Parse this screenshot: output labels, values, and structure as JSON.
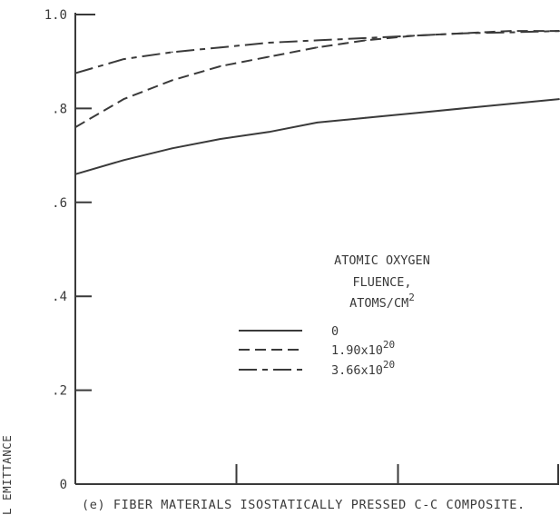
{
  "chart_data": {
    "type": "line",
    "ylabel": "L EMITTANCE",
    "ylim": [
      0,
      1.0
    ],
    "y_ticks": [
      {
        "value": 0.0,
        "label": "0"
      },
      {
        "value": 0.2,
        "label": ".2"
      },
      {
        "value": 0.4,
        "label": ".4"
      },
      {
        "value": 0.6,
        "label": ".6"
      },
      {
        "value": 0.8,
        "label": ".8"
      },
      {
        "value": 1.0,
        "label": "1.0"
      }
    ],
    "x_minor_ticks": [
      0.333,
      0.667,
      1.0
    ],
    "xlim": [
      0,
      1
    ],
    "caption": "(e) FIBER MATERIALS ISOSTATICALLY PRESSED C-C COMPOSITE.",
    "legend": {
      "title_lines": [
        "ATOMIC OXYGEN",
        "FLUENCE,",
        "ATOMS/CM"
      ],
      "title_superscript": "2",
      "placement": "center-right"
    },
    "series": [
      {
        "name": "0",
        "label_base": "0",
        "label_sup": "",
        "style": "solid",
        "x": [
          0,
          0.1,
          0.2,
          0.3,
          0.4,
          0.5,
          0.6,
          0.7,
          0.8,
          0.9,
          1.0
        ],
        "values": [
          0.66,
          0.69,
          0.715,
          0.735,
          0.75,
          0.77,
          0.78,
          0.79,
          0.8,
          0.81,
          0.82
        ]
      },
      {
        "name": "1.90x10^20",
        "label_base": "1.90x10",
        "label_sup": "20",
        "style": "dashed",
        "x": [
          0,
          0.1,
          0.2,
          0.3,
          0.4,
          0.5,
          0.6,
          0.7,
          0.8,
          0.9,
          1.0
        ],
        "values": [
          0.76,
          0.82,
          0.86,
          0.89,
          0.91,
          0.93,
          0.945,
          0.955,
          0.96,
          0.965,
          0.965
        ]
      },
      {
        "name": "3.66x10^20",
        "label_base": "3.66x10",
        "label_sup": "20",
        "style": "long-short-dash",
        "x": [
          0,
          0.1,
          0.2,
          0.3,
          0.4,
          0.5,
          0.6,
          0.7,
          0.8,
          0.9,
          1.0
        ],
        "values": [
          0.875,
          0.905,
          0.92,
          0.93,
          0.94,
          0.945,
          0.95,
          0.955,
          0.96,
          0.962,
          0.965
        ]
      }
    ]
  }
}
